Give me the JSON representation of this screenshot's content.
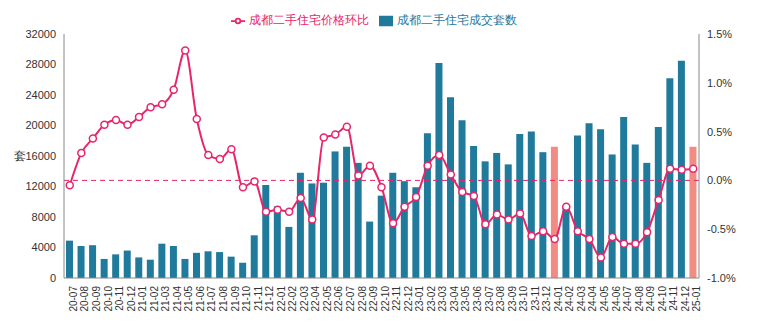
{
  "chart_data": {
    "type": "bar",
    "ylabel": "套",
    "legend": "top",
    "grid": false,
    "categories": [
      "20-07",
      "20-08",
      "20-09",
      "20-10",
      "20-11",
      "20-12",
      "21-01",
      "21-02",
      "21-03",
      "21-04",
      "21-05",
      "21-06",
      "21-07",
      "21-08",
      "21-09",
      "21-10",
      "21-11",
      "21-12",
      "22-01",
      "22-02",
      "22-03",
      "22-04",
      "22-05",
      "22-06",
      "22-07",
      "22-08",
      "22-09",
      "22-10",
      "22-11",
      "22-12",
      "23-01",
      "23-02",
      "23-03",
      "23-04",
      "23-05",
      "23-06",
      "23-07",
      "23-08",
      "23-09",
      "23-10",
      "23-11",
      "23-12",
      "24-01",
      "24-02",
      "24-03",
      "24-04",
      "24-05",
      "24-06",
      "24-07",
      "24-08",
      "24-09",
      "24-10",
      "24-11",
      "24-12",
      "25-01"
    ],
    "ylim": [
      0,
      32000
    ],
    "yticks": [
      0,
      4000,
      8000,
      12000,
      16000,
      20000,
      24000,
      28000,
      32000
    ],
    "y2lim": [
      -1.0,
      1.5
    ],
    "y2ticks": [
      {
        "value": -1.0,
        "label": "-1.0%"
      },
      {
        "value": -0.5,
        "label": "-0.5%"
      },
      {
        "value": 0.0,
        "label": "0.0%"
      },
      {
        "value": 0.5,
        "label": "0.5%"
      },
      {
        "value": 1.0,
        "label": "1.0%"
      },
      {
        "value": 1.5,
        "label": "1.5%"
      }
    ],
    "series": [
      {
        "name": "成都二手住宅成交套数",
        "type": "bar",
        "colors": [
          "#1f7a9c",
          "#1f7a9c",
          "#1f7a9c",
          "#1f7a9c",
          "#1f7a9c",
          "#1f7a9c",
          "#1f7a9c",
          "#1f7a9c",
          "#1f7a9c",
          "#1f7a9c",
          "#1f7a9c",
          "#1f7a9c",
          "#1f7a9c",
          "#1f7a9c",
          "#1f7a9c",
          "#1f7a9c",
          "#1f7a9c",
          "#1f7a9c",
          "#1f7a9c",
          "#1f7a9c",
          "#1f7a9c",
          "#1f7a9c",
          "#1f7a9c",
          "#1f7a9c",
          "#1f7a9c",
          "#1f7a9c",
          "#1f7a9c",
          "#1f7a9c",
          "#1f7a9c",
          "#1f7a9c",
          "#1f7a9c",
          "#1f7a9c",
          "#1f7a9c",
          "#1f7a9c",
          "#1f7a9c",
          "#1f7a9c",
          "#1f7a9c",
          "#1f7a9c",
          "#1f7a9c",
          "#1f7a9c",
          "#1f7a9c",
          "#1f7a9c",
          "#f28b82",
          "#1f7a9c",
          "#1f7a9c",
          "#1f7a9c",
          "#1f7a9c",
          "#1f7a9c",
          "#1f7a9c",
          "#1f7a9c",
          "#1f7a9c",
          "#1f7a9c",
          "#1f7a9c",
          "#1f7a9c",
          "#f28b82"
        ],
        "values": [
          4900,
          4200,
          4300,
          2500,
          3100,
          3600,
          2700,
          2400,
          4500,
          4200,
          2500,
          3300,
          3500,
          3400,
          2800,
          2000,
          5600,
          12200,
          9400,
          6700,
          13800,
          12400,
          12500,
          16600,
          17200,
          15100,
          7400,
          10800,
          13800,
          12700,
          11900,
          19000,
          28200,
          23700,
          20700,
          17300,
          15300,
          16400,
          14900,
          18900,
          19200,
          16500,
          17200,
          9300,
          18700,
          20300,
          19500,
          16200,
          21100,
          17500,
          15100,
          19800,
          26200,
          28500,
          17200
        ]
      },
      {
        "name": "成都二手住宅价格环比",
        "type": "line",
        "axis": "y2",
        "color": "#e8246b",
        "marker": "circle",
        "line_style": "solid",
        "values": [
          -0.05,
          0.28,
          0.43,
          0.57,
          0.62,
          0.57,
          0.65,
          0.75,
          0.78,
          0.93,
          1.33,
          0.63,
          0.26,
          0.22,
          0.32,
          -0.07,
          -0.01,
          -0.32,
          -0.3,
          -0.32,
          -0.18,
          -0.4,
          0.44,
          0.47,
          0.55,
          0.05,
          0.15,
          -0.07,
          -0.44,
          -0.27,
          -0.17,
          0.15,
          0.26,
          0.06,
          -0.12,
          -0.16,
          -0.45,
          -0.35,
          -0.4,
          -0.34,
          -0.57,
          -0.52,
          -0.6,
          -0.27,
          -0.52,
          -0.6,
          -0.79,
          -0.58,
          -0.65,
          -0.65,
          -0.53,
          -0.2,
          0.12,
          0.11,
          0.12
        ]
      }
    ]
  }
}
